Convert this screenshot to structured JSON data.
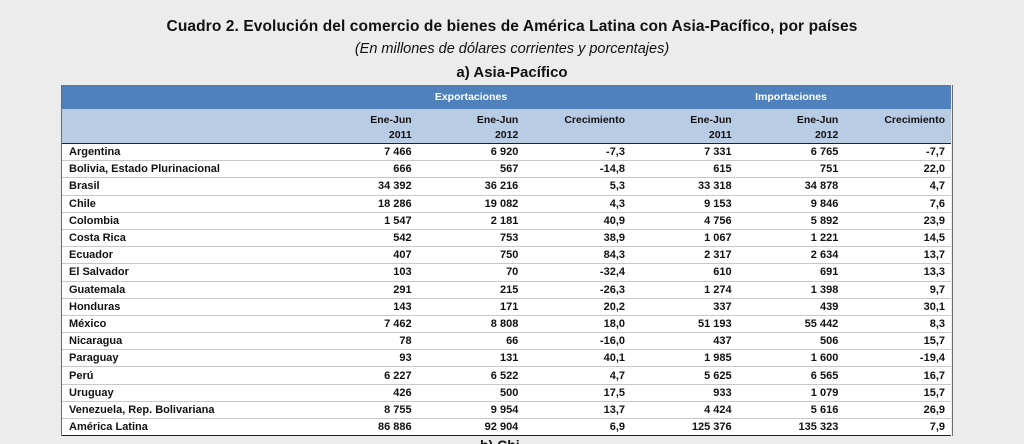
{
  "title": "Cuadro 2. Evolución del comercio de bienes de América Latina con Asia-Pacífico, por países",
  "subtitle": "(En millones de dólares corrientes y porcentajes)",
  "section": "a) Asia-Pacífico",
  "next_section_cut": "b) Chi",
  "table": {
    "group_headers": {
      "exports": "Exportaciones",
      "imports": "Importaciones"
    },
    "columns": [
      {
        "line1": "",
        "line2": ""
      },
      {
        "line1": "Ene-Jun",
        "line2": "2011"
      },
      {
        "line1": "Ene-Jun",
        "line2": "2012"
      },
      {
        "line1": "Crecimiento",
        "line2": ""
      },
      {
        "line1": "Ene-Jun",
        "line2": "2011"
      },
      {
        "line1": "Ene-Jun",
        "line2": "2012"
      },
      {
        "line1": "Crecimiento",
        "line2": ""
      }
    ],
    "rows": [
      [
        "Argentina",
        "7 466",
        "6 920",
        "-7,3",
        "7 331",
        "6 765",
        "-7,7"
      ],
      [
        "Bolivia, Estado Plurinacional",
        "666",
        "567",
        "-14,8",
        "615",
        "751",
        "22,0"
      ],
      [
        "Brasil",
        "34 392",
        "36 216",
        "5,3",
        "33 318",
        "34 878",
        "4,7"
      ],
      [
        "Chile",
        "18 286",
        "19 082",
        "4,3",
        "9 153",
        "9 846",
        "7,6"
      ],
      [
        "Colombia",
        "1 547",
        "2 181",
        "40,9",
        "4 756",
        "5 892",
        "23,9"
      ],
      [
        "Costa Rica",
        "542",
        "753",
        "38,9",
        "1 067",
        "1 221",
        "14,5"
      ],
      [
        "Ecuador",
        "407",
        "750",
        "84,3",
        "2 317",
        "2 634",
        "13,7"
      ],
      [
        "El Salvador",
        "103",
        "70",
        "-32,4",
        "610",
        "691",
        "13,3"
      ],
      [
        "Guatemala",
        "291",
        "215",
        "-26,3",
        "1 274",
        "1 398",
        "9,7"
      ],
      [
        "Honduras",
        "143",
        "171",
        "20,2",
        "337",
        "439",
        "30,1"
      ],
      [
        "México",
        "7 462",
        "8 808",
        "18,0",
        "51 193",
        "55 442",
        "8,3"
      ],
      [
        "Nicaragua",
        "78",
        "66",
        "-16,0",
        "437",
        "506",
        "15,7"
      ],
      [
        "Paraguay",
        "93",
        "131",
        "40,1",
        "1 985",
        "1 600",
        "-19,4"
      ],
      [
        "Perú",
        "6 227",
        "6 522",
        "4,7",
        "5 625",
        "6 565",
        "16,7"
      ],
      [
        "Uruguay",
        "426",
        "500",
        "17,5",
        "933",
        "1 079",
        "15,7"
      ],
      [
        "Venezuela, Rep. Bolivariana",
        "8 755",
        "9 954",
        "13,7",
        "4 424",
        "5 616",
        "26,9"
      ]
    ],
    "total": [
      "América Latina",
      "86 886",
      "92 904",
      "6,9",
      "125 376",
      "135 323",
      "7,9"
    ]
  }
}
